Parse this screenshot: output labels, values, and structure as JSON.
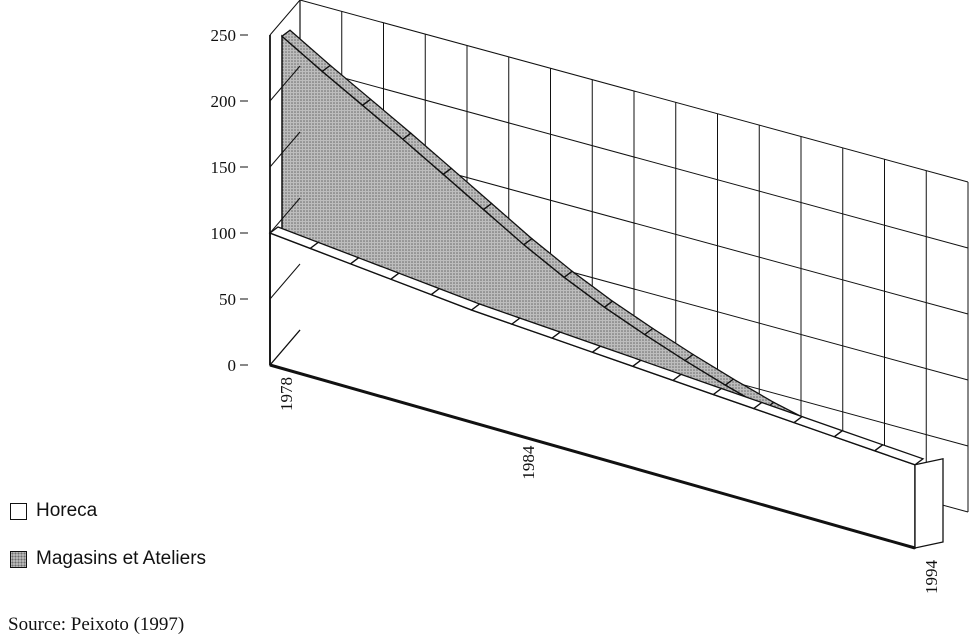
{
  "chart_data": {
    "type": "area",
    "three_d": true,
    "y_ticks": [
      0,
      50,
      100,
      150,
      200,
      250
    ],
    "ylim": [
      0,
      250
    ],
    "x_tick_labels": [
      "1978",
      "1984",
      "1994"
    ],
    "x": [
      1978,
      1979,
      1980,
      1981,
      1982,
      1983,
      1984,
      1985,
      1986,
      1987,
      1988,
      1989,
      1990,
      1991,
      1992,
      1993,
      1994
    ],
    "series": [
      {
        "name": "Horeca",
        "fill": "white",
        "values": [
          100,
          97,
          94,
          91,
          88,
          85,
          83,
          81,
          79,
          77,
          75,
          73,
          71,
          69,
          67,
          65,
          63
        ]
      },
      {
        "name": "Magasins et Ateliers",
        "fill": "dotted-gray",
        "values": [
          240,
          222,
          205,
          188,
          170,
          152,
          134,
          118,
          104,
          92,
          81,
          71,
          62,
          55,
          49,
          45,
          42
        ]
      }
    ],
    "grid": true,
    "legend_position": "bottom-left"
  },
  "legend": {
    "items": [
      {
        "label": "Horeca"
      },
      {
        "label": "Magasins et Ateliers"
      }
    ]
  },
  "source": "Source: Peixoto (1997)",
  "colors": {
    "ink": "#111111",
    "back_fill": "#b9b9b9",
    "front_fill": "#ffffff"
  }
}
